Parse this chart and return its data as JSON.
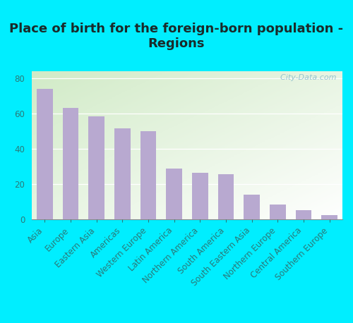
{
  "title": "Place of birth for the foreign-born population -\nRegions",
  "categories": [
    "Asia",
    "Europe",
    "Eastern Asia",
    "Americas",
    "Western Europe",
    "Latin America",
    "Northern America",
    "South America",
    "South Eastern Asia",
    "Northern Europe",
    "Central America",
    "Southern Europe"
  ],
  "values": [
    74,
    63,
    58.5,
    51.5,
    50,
    29,
    26.5,
    25.5,
    14,
    8.5,
    5.5,
    2.5
  ],
  "bar_color": "#b8a9d0",
  "background_outer": "#00eeff",
  "title_color": "#1a2a2a",
  "ylabel_ticks": [
    0,
    20,
    40,
    60,
    80
  ],
  "title_fontsize": 13,
  "tick_fontsize": 8.5,
  "watermark_text": "  City-Data.com",
  "ylim_max": 84
}
